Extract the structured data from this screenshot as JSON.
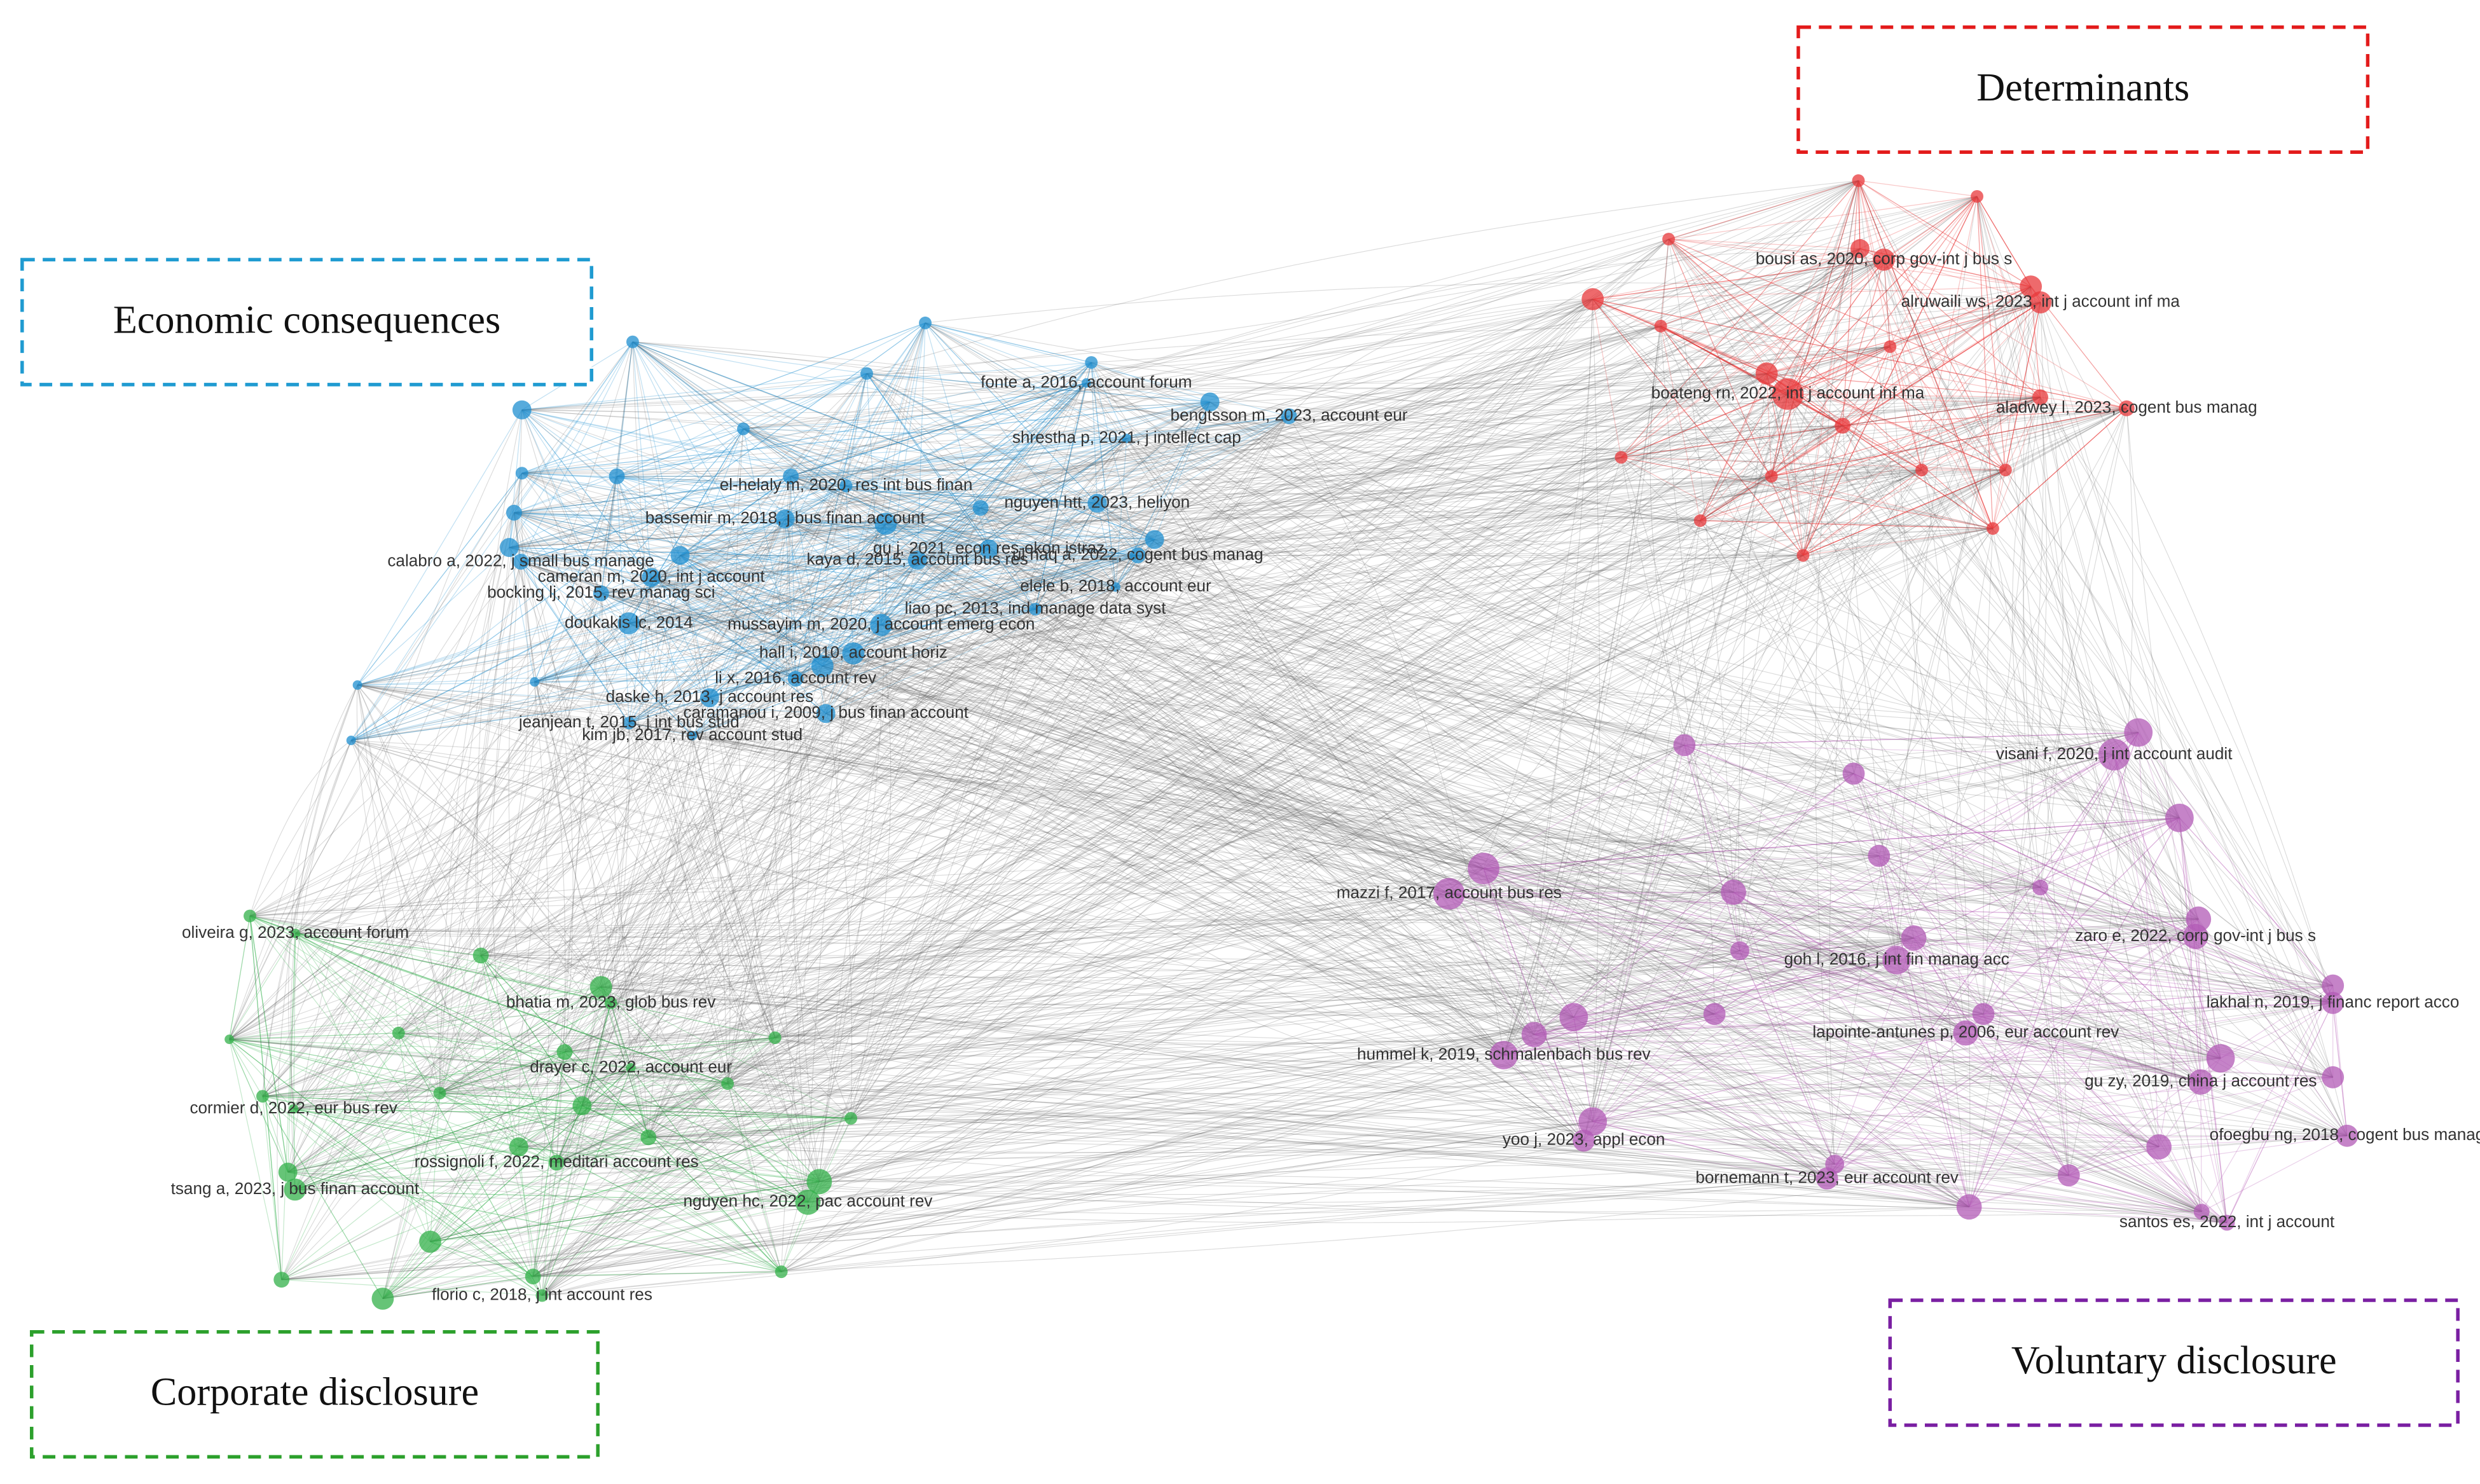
{
  "clusters": [
    {
      "label": "Economic consequences",
      "color": "#1f8fd0",
      "nodes": [
        "fonte a, 2016, account forum",
        "bengtsson m, 2023, account eur",
        "shrestha p, 2021, j intellect cap",
        "el-helaly m, 2020, res int bus finan",
        "nguyen htt, 2023, heliyon",
        "bassemir m, 2018, j bus finan account",
        "calabro a, 2022, j small bus manage",
        "gu j, 2021, econ res-ekon istraz",
        "kaya d, 2015, account bus res",
        "ul haq a, 2022, cogent bus manag",
        "cameran m, 2020, int j account",
        "bocking lj, 2015, rev manag sci",
        "elele b, 2018, account eur",
        "liao pc, 2013, ind manage data syst",
        "doukakis lc, 2014",
        "mussayim m, 2020, j account emerg econ",
        "hall i, 2010, account horiz",
        "li x, 2016, account rev",
        "daske h, 2013, j account res",
        "caramanou i, 2009, j bus finan account",
        "jeanjean t, 2015, j int bus stud",
        "kim jb, 2017, rev account stud"
      ]
    },
    {
      "label": "Determinants",
      "color": "#e8383b",
      "nodes": [
        "bousi as, 2020, corp gov-int j bus s",
        "alruwaili ws, 2023, int j account inf ma",
        "boateng rn, 2022, int j account inf ma",
        "aladwey l, 2023, cogent bus manag"
      ]
    },
    {
      "label": "Corporate disclosure",
      "color": "#33b04a",
      "nodes": [
        "oliveira g, 2023, account forum",
        "bhatia m, 2023, glob bus rev",
        "drayer c, 2022, account eur",
        "cormier d, 2022, eur bus rev",
        "rossignoli f, 2022, meditari account res",
        "tsang a, 2023, j bus finan account",
        "nguyen hc, 2022, pac account rev",
        "florio c, 2018, j int account res"
      ]
    },
    {
      "label": "Voluntary disclosure",
      "color": "#b25ab5",
      "nodes": [
        "visani f, 2020, j int account audit",
        "mazzi f, 2017, account bus res",
        "zaro e, 2022, corp gov-int j bus s",
        "goh l, 2016, j int fin manag acc",
        "lakhal n, 2019, j financ report acco",
        "lapointe-antunes p, 2006, eur account rev",
        "hummel k, 2019, schmalenbach bus rev",
        "gu zy, 2019, china j account res",
        "yoo j, 2023, appl econ",
        "ofoegbu ng, 2018, cogent bus manag",
        "bornemann t, 2023, eur account rev",
        "santos es, 2022, int j account"
      ]
    }
  ]
}
